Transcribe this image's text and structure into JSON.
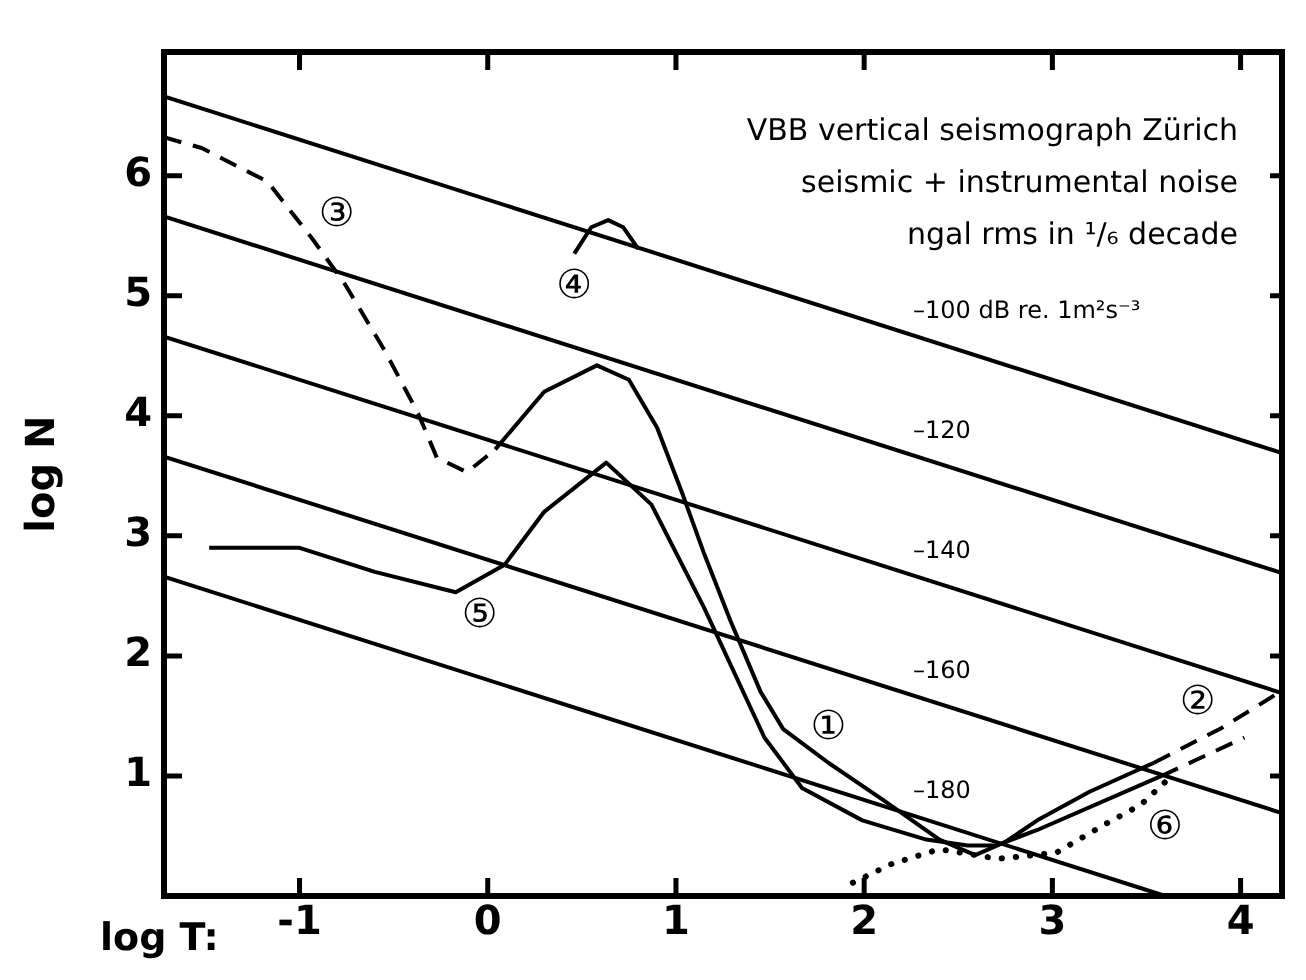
{
  "chart_data": {
    "type": "line",
    "title": "VBB vertical seismograph Zürich",
    "subtitle": "seismic + instrumental noise",
    "xlabel": "log T:",
    "ylabel": "log N",
    "xlim": [
      -1.72,
      4.22
    ],
    "ylim": [
      0,
      7.03
    ],
    "xticks": [
      -1,
      0,
      1,
      2,
      3,
      4
    ],
    "yticks": [
      1,
      2,
      3,
      4,
      5,
      6
    ],
    "grid": false,
    "marker": "none",
    "line_style": "solid",
    "series": [
      {
        "name": "–100 dB re. 1m²s⁻³",
        "color": "#000000",
        "x": [
          -1.72,
          4.22
        ],
        "values": [
          6.66,
          3.69
        ]
      },
      {
        "name": "–120",
        "color": "#000000",
        "x": [
          -1.72,
          4.22
        ],
        "values": [
          5.66,
          2.69
        ]
      },
      {
        "name": "–140",
        "color": "#000000",
        "x": [
          -1.72,
          4.22
        ],
        "values": [
          4.66,
          1.69
        ]
      },
      {
        "name": "–160",
        "color": "#000000",
        "x": [
          -1.72,
          4.22
        ],
        "values": [
          3.66,
          0.69
        ]
      },
      {
        "name": "–180",
        "color": "#000000",
        "x": [
          -1.72,
          3.6
        ],
        "values": [
          2.66,
          0
        ]
      },
      {
        "name": "③",
        "color": "#000000",
        "line_style": "dashed",
        "x": [
          -1.72,
          -1.52,
          -1.17,
          -0.93,
          -0.76,
          -0.55,
          -0.37,
          -0.27,
          -0.11,
          0.04
        ],
        "values": [
          6.32,
          6.23,
          5.95,
          5.47,
          5.1,
          4.55,
          4.02,
          3.65,
          3.53,
          3.72
        ]
      },
      {
        "name": "①",
        "color": "#000000",
        "x": [
          0.04,
          0.3,
          0.58,
          0.75,
          0.9,
          1.03,
          1.15,
          1.29,
          1.45,
          1.57,
          1.81,
          2.1,
          2.4,
          2.59,
          2.75,
          2.92,
          3.2,
          3.54
        ],
        "values": [
          3.72,
          4.2,
          4.42,
          4.3,
          3.9,
          3.37,
          2.85,
          2.29,
          1.7,
          1.39,
          1.11,
          0.8,
          0.47,
          0.34,
          0.45,
          0.63,
          0.87,
          1.11
        ]
      },
      {
        "name": "②",
        "color": "#000000",
        "line_style": "dashed",
        "x": [
          3.54,
          3.9,
          4.22
        ],
        "values": [
          1.11,
          1.4,
          1.71
        ]
      },
      {
        "name": "④",
        "color": "#000000",
        "x": [
          0.46,
          0.55,
          0.64,
          0.72,
          0.8
        ],
        "values": [
          5.35,
          5.57,
          5.63,
          5.57,
          5.39
        ]
      },
      {
        "name": "⑤",
        "color": "#000000",
        "x": [
          -1.48,
          -1.0,
          -0.6,
          -0.17,
          0.09,
          0.3,
          0.63,
          0.87,
          1.15,
          1.47,
          1.67,
          1.99,
          2.33,
          2.55,
          2.7,
          2.92,
          3.58
        ],
        "values": [
          2.9,
          2.9,
          2.7,
          2.53,
          2.76,
          3.2,
          3.61,
          3.26,
          2.4,
          1.32,
          0.9,
          0.63,
          0.47,
          0.42,
          0.42,
          0.55,
          1.0
        ]
      },
      {
        "color": "#000000",
        "line_style": "dashed",
        "x": [
          3.58,
          4.02
        ],
        "values": [
          1.0,
          1.32
        ]
      },
      {
        "name": "⑥",
        "color": "#000000",
        "line_style": "dotted",
        "x": [
          1.94,
          2.15,
          2.4,
          2.71,
          3.02,
          3.26,
          3.47,
          3.6
        ],
        "values": [
          0.11,
          0.27,
          0.39,
          0.31,
          0.36,
          0.58,
          0.76,
          0.95
        ]
      }
    ],
    "annotations": [
      "ngal rms in ¹/₆ decade"
    ]
  }
}
